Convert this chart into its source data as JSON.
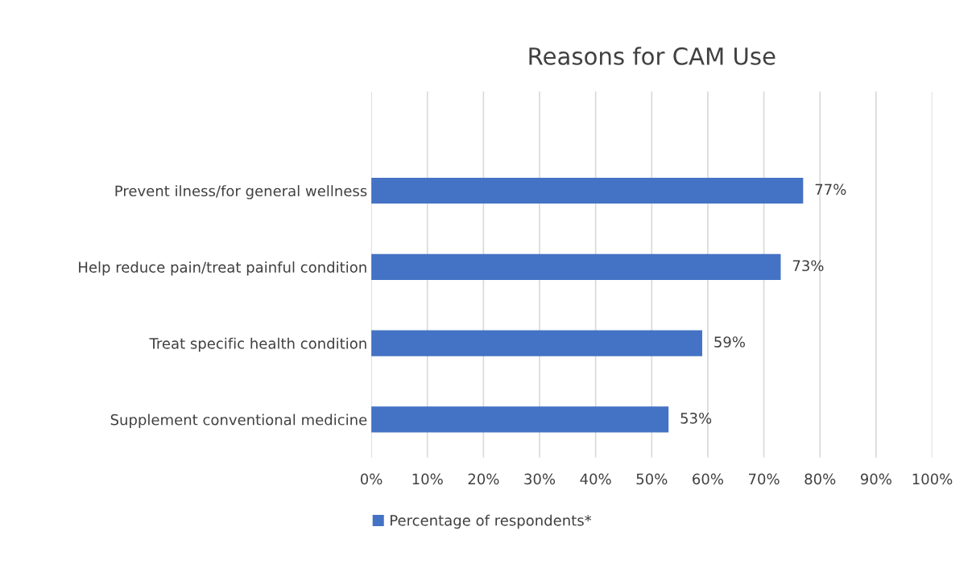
{
  "chart_data": {
    "type": "bar",
    "orientation": "horizontal",
    "title": "Reasons for CAM Use",
    "categories": [
      "Prevent ilness/for general wellness",
      "Help reduce pain/treat painful condition",
      "Treat specific health condition",
      "Supplement conventional medicine"
    ],
    "series": [
      {
        "name": "Percentage of respondents*",
        "color": "#4472c4",
        "values": [
          77,
          73,
          59,
          53
        ],
        "value_labels": [
          "77%",
          "73%",
          "59%",
          "53%"
        ]
      }
    ],
    "xlim": [
      0,
      100
    ],
    "xticks": [
      {
        "value": 0,
        "label": "0%"
      },
      {
        "value": 10,
        "label": "10%"
      },
      {
        "value": 20,
        "label": "20%"
      },
      {
        "value": 30,
        "label": "30%"
      },
      {
        "value": 40,
        "label": "40%"
      },
      {
        "value": 50,
        "label": "50%"
      },
      {
        "value": 60,
        "label": "60%"
      },
      {
        "value": 70,
        "label": "70%"
      },
      {
        "value": 80,
        "label": "80%"
      },
      {
        "value": 90,
        "label": "90%"
      },
      {
        "value": 100,
        "label": "100%"
      }
    ],
    "grid": "x",
    "legend": "bottom"
  }
}
